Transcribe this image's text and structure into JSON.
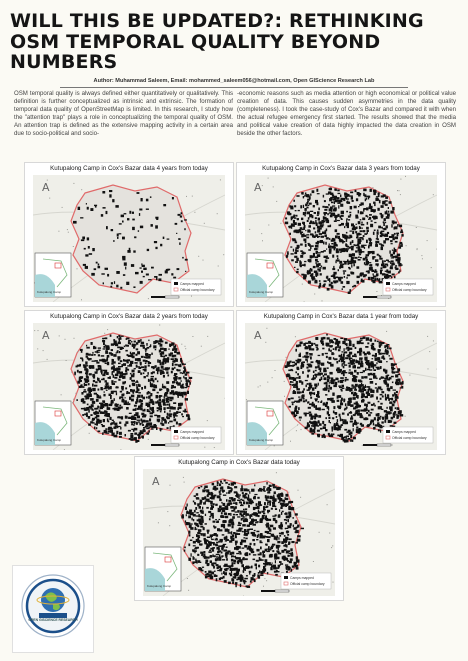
{
  "poster": {
    "title": "WILL THIS BE UPDATED?: RETHINKING OSM TEMPORAL QUALITY BEYOND NUMBERS",
    "author_line": "Author: Muhammad Saleem, Email: mohammed_saleem056@hotmail.com, Open GIScience Research Lab",
    "abstract_left": "OSM temporal quality is always defined either quantitatively or qualitatively. This definition is further conceptualized as intrinsic and extrinsic. The formation of temporal data quality of OpenStreetMap is limited. In this research, I study how the \"attention trap\" plays a role in conceptualizing the temporal quality of OSM. An attention trap is defined as the extensive mapping activity in a certain area due to socio-political and socio-",
    "abstract_right": "-economic reasons such as media attention or high economical or political value creation of data. This causes sudden asymmetries in the data quality (completeness). I took the case-study of Cox's Bazar and compared it with when the actual refugee emergency first started. The results showed that the media and political value creation of data highly impacted the data creation in OSM beside the other factors."
  },
  "maps": [
    {
      "title": "Kutupalong Camp in Cox's Bazar data 4 years from today",
      "density": 0.12
    },
    {
      "title": "Kutupalong Camp in Cox's Bazar data 3 years from today",
      "density": 0.8
    },
    {
      "title": "Kutupalong Camp in Cox's Bazar data 2 years from today",
      "density": 0.88
    },
    {
      "title": "Kutupalong Camp in Cox's Bazar data 1 year from today",
      "density": 0.88
    },
    {
      "title": "Kutupalong Camp in Cox's Bazar data today",
      "density": 0.95
    }
  ],
  "legend": {
    "item1": "Camps mapped",
    "item2": "Official camp boundary",
    "camp_color": "#111111",
    "boundary_color": "#e06a6a"
  },
  "inset": {
    "label": "Kutupalong Camp"
  },
  "north_symbol": "A",
  "logo": {
    "caption": "OPEN GISCIENCE RESEARCH"
  },
  "colors": {
    "background": "#fbfaf4",
    "water": "#a9d6d9",
    "land": "#efefe9"
  }
}
